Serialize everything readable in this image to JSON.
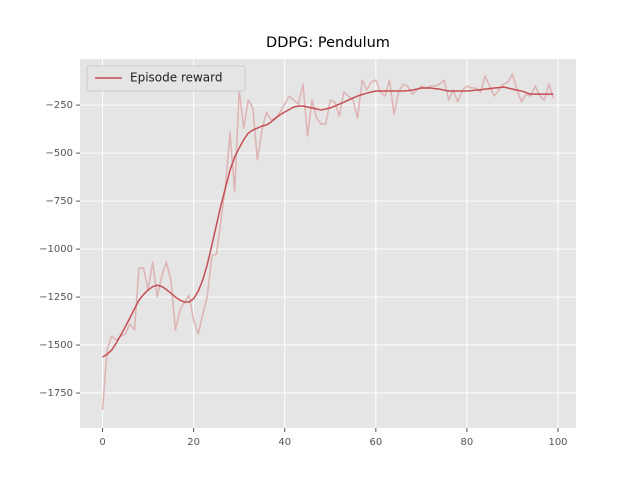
{
  "chart_data": {
    "type": "line",
    "title": "DDPG: Pendulum",
    "x": [
      0,
      1,
      2,
      3,
      4,
      5,
      6,
      7,
      8,
      9,
      10,
      11,
      12,
      13,
      14,
      15,
      16,
      17,
      18,
      19,
      20,
      21,
      22,
      23,
      24,
      25,
      26,
      27,
      28,
      29,
      30,
      31,
      32,
      33,
      34,
      35,
      36,
      37,
      38,
      39,
      40,
      41,
      42,
      43,
      44,
      45,
      46,
      47,
      48,
      49,
      50,
      51,
      52,
      53,
      54,
      55,
      56,
      57,
      58,
      59,
      60,
      61,
      62,
      63,
      64,
      65,
      66,
      67,
      68,
      69,
      70,
      71,
      72,
      73,
      74,
      75,
      76,
      77,
      78,
      79,
      80,
      81,
      82,
      83,
      84,
      85,
      86,
      87,
      88,
      89,
      90,
      91,
      92,
      93,
      94,
      95,
      96,
      97,
      98,
      99
    ],
    "series": [
      {
        "color": "#deb3b3",
        "values": [
          -1838,
          -1526,
          -1453,
          -1474,
          -1453,
          -1443,
          -1390,
          -1422,
          -1099,
          -1099,
          -1213,
          -1068,
          -1250,
          -1141,
          -1068,
          -1161,
          -1422,
          -1318,
          -1276,
          -1240,
          -1370,
          -1443,
          -1339,
          -1245,
          -1036,
          -1026,
          -849,
          -667,
          -391,
          -703,
          -172,
          -370,
          -224,
          -266,
          -536,
          -380,
          -286,
          -328,
          -318,
          -286,
          -245,
          -203,
          -224,
          -245,
          -141,
          -411,
          -224,
          -318,
          -349,
          -349,
          -224,
          -234,
          -307,
          -182,
          -203,
          -224,
          -318,
          -120,
          -172,
          -130,
          -120,
          -182,
          -203,
          -120,
          -297,
          -182,
          -141,
          -151,
          -193,
          -172,
          -151,
          -161,
          -151,
          -151,
          -141,
          -120,
          -224,
          -172,
          -234,
          -172,
          -151,
          -161,
          -161,
          -182,
          -99,
          -151,
          -203,
          -172,
          -141,
          -130,
          -88,
          -172,
          -234,
          -193,
          -203,
          -151,
          -203,
          -224,
          -141,
          -213
        ]
      },
      {
        "name": "Episode reward",
        "color": "#c44e52",
        "values": [
          -1563,
          -1548,
          -1526,
          -1490,
          -1448,
          -1405,
          -1359,
          -1312,
          -1266,
          -1237,
          -1213,
          -1196,
          -1188,
          -1195,
          -1210,
          -1230,
          -1250,
          -1266,
          -1276,
          -1276,
          -1258,
          -1220,
          -1161,
          -1080,
          -979,
          -875,
          -771,
          -680,
          -589,
          -521,
          -474,
          -430,
          -396,
          -380,
          -370,
          -359,
          -354,
          -338,
          -318,
          -300,
          -286,
          -273,
          -260,
          -255,
          -255,
          -260,
          -265,
          -270,
          -276,
          -270,
          -265,
          -255,
          -245,
          -235,
          -224,
          -213,
          -203,
          -195,
          -188,
          -182,
          -177,
          -177,
          -177,
          -177,
          -177,
          -177,
          -177,
          -175,
          -172,
          -167,
          -161,
          -161,
          -161,
          -164,
          -167,
          -172,
          -177,
          -177,
          -177,
          -177,
          -177,
          -175,
          -172,
          -170,
          -167,
          -164,
          -161,
          -159,
          -156,
          -161,
          -167,
          -172,
          -177,
          -185,
          -193,
          -193,
          -193,
          -193,
          -193,
          -193
        ]
      }
    ],
    "xlim": [
      -4.95,
      103.95
    ],
    "ylim": [
      -1932,
      -10
    ],
    "xticks": [
      0,
      20,
      40,
      60,
      80,
      100
    ],
    "yticks": [
      {
        "value": -1750,
        "label": "−1750"
      },
      {
        "value": -1500,
        "label": "−1500"
      },
      {
        "value": -1250,
        "label": "−1250"
      },
      {
        "value": -1000,
        "label": "−1000"
      },
      {
        "value": -750,
        "label": "−750"
      },
      {
        "value": -500,
        "label": "−500"
      },
      {
        "value": -250,
        "label": "−250"
      }
    ],
    "grid": true,
    "legend": "upper-left"
  }
}
